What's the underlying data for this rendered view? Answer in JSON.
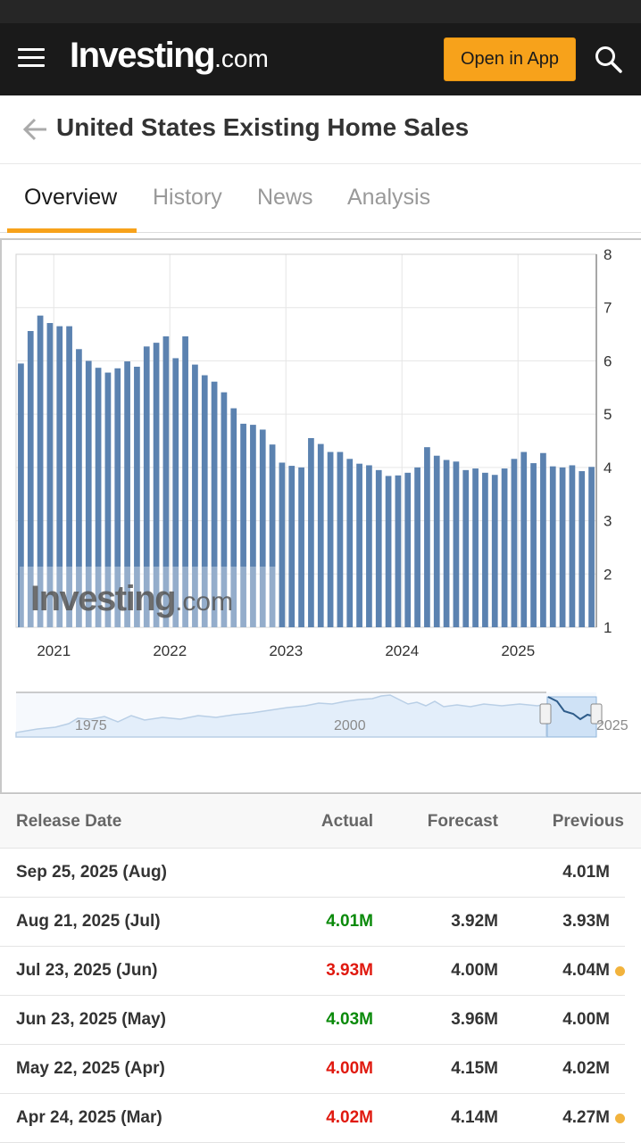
{
  "header": {
    "logo_main": "Investing",
    "logo_tld": ".com",
    "open_app_label": "Open in App"
  },
  "page": {
    "title": "United States Existing Home Sales"
  },
  "tabs": [
    {
      "label": "Overview"
    },
    {
      "label": "History"
    },
    {
      "label": "News"
    },
    {
      "label": "Analysis"
    }
  ],
  "chart_data": {
    "type": "bar",
    "ylim": [
      1,
      8
    ],
    "y_ticks": [
      "8",
      "7",
      "6",
      "5",
      "4",
      "3",
      "2",
      "1"
    ],
    "x_ticks": [
      "2021",
      "2022",
      "2023",
      "2024",
      "2025"
    ],
    "watermark": {
      "main": "Investing",
      "tld": ".com"
    },
    "bar_color": "#5b82b0",
    "values": [
      5.95,
      6.56,
      6.85,
      6.71,
      6.65,
      6.65,
      6.22,
      6.0,
      5.87,
      5.78,
      5.86,
      5.99,
      5.89,
      6.27,
      6.34,
      6.46,
      6.05,
      6.46,
      5.93,
      5.73,
      5.61,
      5.41,
      5.11,
      4.82,
      4.8,
      4.71,
      4.43,
      4.09,
      4.03,
      4.0,
      4.55,
      4.44,
      4.29,
      4.29,
      4.16,
      4.07,
      4.04,
      3.95,
      3.84,
      3.85,
      3.9,
      4.0,
      4.38,
      4.22,
      4.14,
      4.11,
      3.95,
      3.98,
      3.9,
      3.86,
      3.98,
      4.16,
      4.29,
      4.08,
      4.27,
      4.02,
      4.0,
      4.04,
      3.93,
      4.01
    ],
    "navigator": {
      "labels": [
        "1975",
        "2000",
        "2025"
      ]
    }
  },
  "table": {
    "headers": {
      "date": "Release Date",
      "actual": "Actual",
      "forecast": "Forecast",
      "previous": "Previous"
    },
    "rows": [
      {
        "date": "Sep 25, 2025 (Aug)",
        "actual": "",
        "actual_color": "#333333",
        "forecast": "",
        "previous": "4.01M",
        "revised": false
      },
      {
        "date": "Aug 21, 2025 (Jul)",
        "actual": "4.01M",
        "actual_color": "#0a8a0a",
        "forecast": "3.92M",
        "previous": "3.93M",
        "revised": false
      },
      {
        "date": "Jul 23, 2025 (Jun)",
        "actual": "3.93M",
        "actual_color": "#e0190f",
        "forecast": "4.00M",
        "previous": "4.04M",
        "revised": true
      },
      {
        "date": "Jun 23, 2025 (May)",
        "actual": "4.03M",
        "actual_color": "#0a8a0a",
        "forecast": "3.96M",
        "previous": "4.00M",
        "revised": false
      },
      {
        "date": "May 22, 2025 (Apr)",
        "actual": "4.00M",
        "actual_color": "#e0190f",
        "forecast": "4.15M",
        "previous": "4.02M",
        "revised": false
      },
      {
        "date": "Apr 24, 2025 (Mar)",
        "actual": "4.02M",
        "actual_color": "#e0190f",
        "forecast": "4.14M",
        "previous": "4.27M",
        "revised": true
      }
    ],
    "revised_dot_color": "#f2b33d"
  }
}
